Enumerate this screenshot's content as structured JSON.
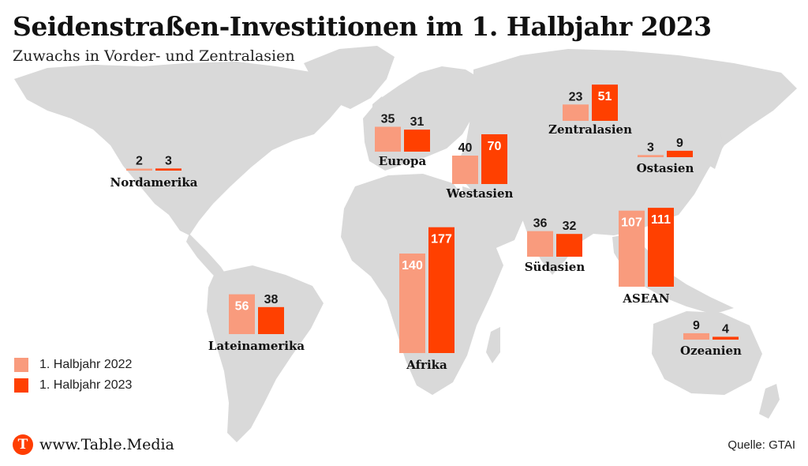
{
  "header": {
    "title": "Seidenstraßen-Investitionen im 1. Halbjahr 2023",
    "subtitle": "Zuwachs in Vorder- und Zentralasien"
  },
  "footer": {
    "brand": "www.Table.Media",
    "brand_logo_letter": "T",
    "source": "Quelle: GTAI"
  },
  "colors": {
    "series_2022": "#f99b7d",
    "series_2023": "#ff4000",
    "map": "#d9d9d9",
    "accent": "#ff3d00"
  },
  "chart_data": {
    "type": "bar",
    "title": "Seidenstraßen-Investitionen im 1. Halbjahr 2023",
    "subtitle": "Zuwachs in Vorder- und Zentralasien",
    "legend_position": "bottom-left",
    "grid": false,
    "series": [
      {
        "name": "1. Halbjahr 2022"
      },
      {
        "name": "1. Halbjahr 2023"
      }
    ],
    "regions": [
      {
        "name": "Nordamerika",
        "values": [
          2,
          3
        ]
      },
      {
        "name": "Lateinamerika",
        "values": [
          56,
          38
        ]
      },
      {
        "name": "Europa",
        "values": [
          35,
          31
        ]
      },
      {
        "name": "Afrika",
        "values": [
          140,
          177
        ]
      },
      {
        "name": "Westasien",
        "values": [
          40,
          70
        ]
      },
      {
        "name": "Zentralasien",
        "values": [
          23,
          51
        ]
      },
      {
        "name": "Südasien",
        "values": [
          36,
          32
        ]
      },
      {
        "name": "Ostasien",
        "values": [
          3,
          9
        ]
      },
      {
        "name": "ASEAN",
        "values": [
          107,
          111
        ]
      },
      {
        "name": "Ozeanien",
        "values": [
          9,
          4
        ]
      }
    ]
  }
}
